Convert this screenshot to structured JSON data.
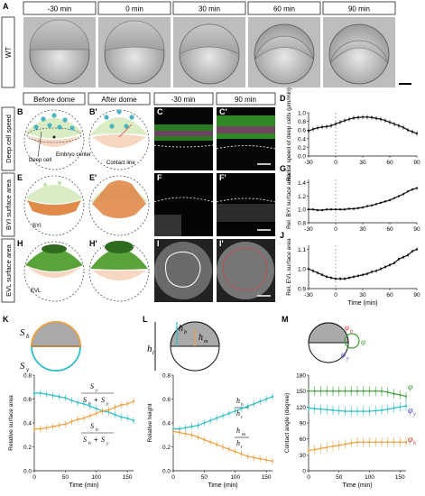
{
  "panel_a": {
    "letter": "A",
    "times": [
      "-30 min",
      "0 min",
      "30 min",
      "60 min",
      "90 min"
    ],
    "row_label": "WT"
  },
  "headers_b": {
    "before": "Before dome",
    "after": "After dome",
    "t1": "-30 min",
    "t2": "90 min"
  },
  "row_labels": [
    "Deep cell speed",
    "BYI surface area",
    "EVL surface area"
  ],
  "letters": {
    "B": "B",
    "B2": "B'",
    "C": "C",
    "C2": "C'",
    "D": "D",
    "E": "E",
    "E2": "E'",
    "F": "F",
    "F2": "F'",
    "G": "G",
    "H": "H",
    "H2": "H'",
    "I": "I",
    "I2": "I'",
    "J": "J",
    "K": "K",
    "L": "L",
    "M": "M"
  },
  "annotations": {
    "deep_cell": "Deep cell",
    "embryo_center": "Embryo center",
    "contact_line": "Contact line",
    "byi": "BYI",
    "evl": "EVL"
  },
  "chart_D": {
    "ylabel": "Radial speed of deep cells (μm/min)",
    "yticks": [
      "0.0",
      "0.2",
      "0.4",
      "0.6",
      "0.8",
      "1.0"
    ],
    "xticks": [
      "-30",
      "0",
      "30",
      "60",
      "90"
    ]
  },
  "chart_G": {
    "ylabel": "Rel. BYI surface area",
    "yticks": [
      "0.8",
      "1.0",
      "1.2",
      "1.4"
    ],
    "xticks": [
      "-30",
      "0",
      "30",
      "60",
      "90"
    ]
  },
  "chart_J": {
    "ylabel": "Rel. EVL surface area",
    "yticks": [
      "0.9",
      "1.0",
      "1.1"
    ],
    "xticks": [
      "-30",
      "0",
      "30",
      "60",
      "90"
    ],
    "xlabel": "Time (min)"
  },
  "chart_K": {
    "ylabel": "Relative surface area",
    "xlabel": "Time (min)",
    "yticks": [
      "0.0",
      "0.2",
      "0.4",
      "0.6",
      "0.8"
    ],
    "xticks": [
      "0",
      "50",
      "100",
      "150"
    ]
  },
  "chart_L": {
    "ylabel": "Relative height",
    "xlabel": "Time (min)",
    "yticks": [
      "0.0",
      "0.2",
      "0.4",
      "0.6",
      "0.8"
    ],
    "xticks": [
      "0",
      "50",
      "100",
      "150"
    ]
  },
  "chart_M": {
    "ylabel": "Contact angle (degree)",
    "xlabel": "Time (min)",
    "yticks": [
      "0",
      "30",
      "60",
      "90",
      "120",
      "150",
      "180"
    ],
    "xticks": [
      "0",
      "50",
      "100",
      "150"
    ]
  },
  "symbols": {
    "sb": "S",
    "sb_sub": "b",
    "sy": "S",
    "sy_sub": "y",
    "ht": "h",
    "ht_sub": "t",
    "hb": "h",
    "hb_sub": "b",
    "hm": "h",
    "hm_sub": "m",
    "phi": "φ",
    "phi_b": "φ",
    "phi_b_sub": "b",
    "phi_y": "φ",
    "phi_y_sub": "y"
  },
  "chart_data": [
    {
      "type": "line",
      "title": "D",
      "x": [
        -30,
        -25,
        -20,
        -15,
        -10,
        -5,
        0,
        5,
        10,
        15,
        20,
        25,
        30,
        35,
        40,
        45,
        50,
        55,
        60,
        65,
        70,
        75,
        80,
        85,
        90
      ],
      "series": [
        {
          "values": [
            0.58,
            0.62,
            0.65,
            0.67,
            0.68,
            0.7,
            0.74,
            0.78,
            0.82,
            0.85,
            0.88,
            0.89,
            0.9,
            0.9,
            0.89,
            0.87,
            0.85,
            0.82,
            0.78,
            0.74,
            0.7,
            0.66,
            0.6,
            0.56,
            0.52
          ]
        }
      ],
      "xlim": [
        -30,
        90
      ],
      "ylim": [
        0,
        1.0
      ],
      "xlabel": "",
      "ylabel": "Radial speed of deep cells (μm/min)"
    },
    {
      "type": "line",
      "title": "G",
      "x": [
        -30,
        -25,
        -20,
        -15,
        -10,
        -5,
        0,
        5,
        10,
        15,
        20,
        25,
        30,
        35,
        40,
        45,
        50,
        55,
        60,
        65,
        70,
        75,
        80,
        85,
        90
      ],
      "series": [
        {
          "values": [
            1.0,
            1.0,
            0.99,
            0.99,
            1.0,
            1.0,
            1.0,
            1.0,
            1.0,
            1.01,
            1.01,
            1.02,
            1.03,
            1.05,
            1.06,
            1.08,
            1.1,
            1.12,
            1.14,
            1.17,
            1.2,
            1.23,
            1.27,
            1.3,
            1.32
          ]
        }
      ],
      "xlim": [
        -30,
        90
      ],
      "ylim": [
        0.8,
        1.45
      ],
      "ylabel": "Rel. BYI surface area"
    },
    {
      "type": "line",
      "title": "J",
      "x": [
        -30,
        -25,
        -20,
        -15,
        -10,
        -5,
        0,
        5,
        10,
        15,
        20,
        25,
        30,
        35,
        40,
        45,
        50,
        55,
        60,
        65,
        70,
        75,
        80,
        85,
        90
      ],
      "series": [
        {
          "values": [
            1.0,
            0.99,
            0.98,
            0.97,
            0.96,
            0.955,
            0.95,
            0.95,
            0.95,
            0.955,
            0.96,
            0.965,
            0.97,
            0.975,
            0.985,
            0.99,
            1.0,
            1.01,
            1.02,
            1.03,
            1.05,
            1.06,
            1.07,
            1.09,
            1.1
          ]
        }
      ],
      "xlim": [
        -30,
        90
      ],
      "ylim": [
        0.9,
        1.12
      ],
      "xlabel": "Time (min)",
      "ylabel": "Rel. EVL surface area"
    },
    {
      "type": "line",
      "title": "K",
      "x": [
        0,
        10,
        20,
        30,
        40,
        50,
        60,
        70,
        80,
        90,
        100,
        110,
        120,
        130,
        140,
        150,
        160
      ],
      "series": [
        {
          "values": [
            0.65,
            0.65,
            0.64,
            0.63,
            0.62,
            0.61,
            0.59,
            0.57,
            0.56,
            0.54,
            0.52,
            0.5,
            0.49,
            0.47,
            0.45,
            0.44,
            0.42
          ]
        },
        {
          "values": [
            0.35,
            0.35,
            0.36,
            0.37,
            0.38,
            0.39,
            0.41,
            0.43,
            0.44,
            0.46,
            0.48,
            0.5,
            0.51,
            0.53,
            0.55,
            0.56,
            0.58
          ]
        }
      ],
      "xlim": [
        0,
        160
      ],
      "ylim": [
        0,
        0.8
      ],
      "xlabel": "Time (min)",
      "ylabel": "Relative surface area"
    },
    {
      "type": "line",
      "title": "L",
      "x": [
        0,
        10,
        20,
        30,
        40,
        50,
        60,
        70,
        80,
        90,
        100,
        110,
        120,
        130,
        140,
        150,
        160
      ],
      "series": [
        {
          "values": [
            0.35,
            0.35,
            0.36,
            0.37,
            0.38,
            0.4,
            0.42,
            0.44,
            0.46,
            0.48,
            0.5,
            0.52,
            0.54,
            0.56,
            0.58,
            0.6,
            0.62
          ]
        },
        {
          "values": [
            0.33,
            0.32,
            0.31,
            0.3,
            0.28,
            0.26,
            0.24,
            0.22,
            0.2,
            0.18,
            0.16,
            0.14,
            0.12,
            0.11,
            0.1,
            0.09,
            0.08
          ]
        }
      ],
      "xlim": [
        0,
        160
      ],
      "ylim": [
        0,
        0.8
      ],
      "xlabel": "Time (min)",
      "ylabel": "Relative height"
    },
    {
      "type": "line",
      "title": "M",
      "x": [
        0,
        10,
        20,
        30,
        40,
        50,
        60,
        70,
        80,
        90,
        100,
        110,
        120,
        130,
        140,
        150,
        160
      ],
      "series": [
        {
          "values": [
            150,
            150,
            150,
            150,
            150,
            150,
            150,
            150,
            150,
            150,
            150,
            150,
            150,
            148,
            145,
            143,
            140
          ]
        },
        {
          "values": [
            118,
            117,
            116,
            115,
            114,
            113,
            112,
            112,
            112,
            112,
            112,
            113,
            114,
            116,
            118,
            120,
            122
          ]
        },
        {
          "values": [
            38,
            40,
            42,
            44,
            46,
            48,
            50,
            52,
            54,
            54,
            54,
            54,
            54,
            54,
            54,
            54,
            54
          ]
        }
      ],
      "xlim": [
        0,
        160
      ],
      "ylim": [
        0,
        180
      ],
      "xlabel": "Time (min)",
      "ylabel": "Contact angle (degree)"
    }
  ]
}
